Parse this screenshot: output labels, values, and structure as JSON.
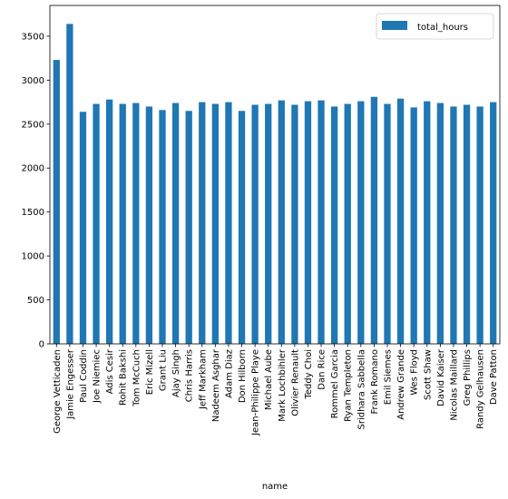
{
  "chart_data": {
    "type": "bar",
    "xlabel": "name",
    "ylabel": "",
    "ylim": [
      0,
      3850
    ],
    "yticks": [
      0,
      500,
      1000,
      1500,
      2000,
      2500,
      3000,
      3500
    ],
    "grid": false,
    "legend_position": "top-right",
    "bar_color": "#1f77b4",
    "categories": [
      "George Vetticaden",
      "Jamie Engesser",
      "Paul Coddin",
      "Joe Niemiec",
      "Adis Cesir",
      "Rohit Bakshi",
      "Tom McCuch",
      "Eric Mizell",
      "Grant Liu",
      "Ajay Singh",
      "Chris Harris",
      "Jeff Markham",
      "Nadeem Asghar",
      "Adam Diaz",
      "Don Hilborn",
      "Jean-Philippe Playe",
      "Michael Aube",
      "Mark Lochbihler",
      "Olivier Renault",
      "Teddy Choi",
      "Dan Rice",
      "Rommel Garcia",
      "Ryan Templeton",
      "Sridhara Sabbella",
      "Frank Romano",
      "Emil Siemes",
      "Andrew Grande",
      "Wes Floyd",
      "Scott Shaw",
      "David Kaiser",
      "Nicolas Maillard",
      "Greg Phillips",
      "Randy Gelhausen",
      "Dave Patton"
    ],
    "series": [
      {
        "name": "total_hours",
        "values": [
          3230,
          3640,
          2640,
          2730,
          2780,
          2730,
          2740,
          2700,
          2660,
          2740,
          2650,
          2750,
          2730,
          2750,
          2650,
          2720,
          2730,
          2770,
          2720,
          2760,
          2770,
          2700,
          2730,
          2760,
          2810,
          2730,
          2790,
          2690,
          2760,
          2740,
          2700,
          2720,
          2700,
          2750
        ]
      }
    ]
  }
}
